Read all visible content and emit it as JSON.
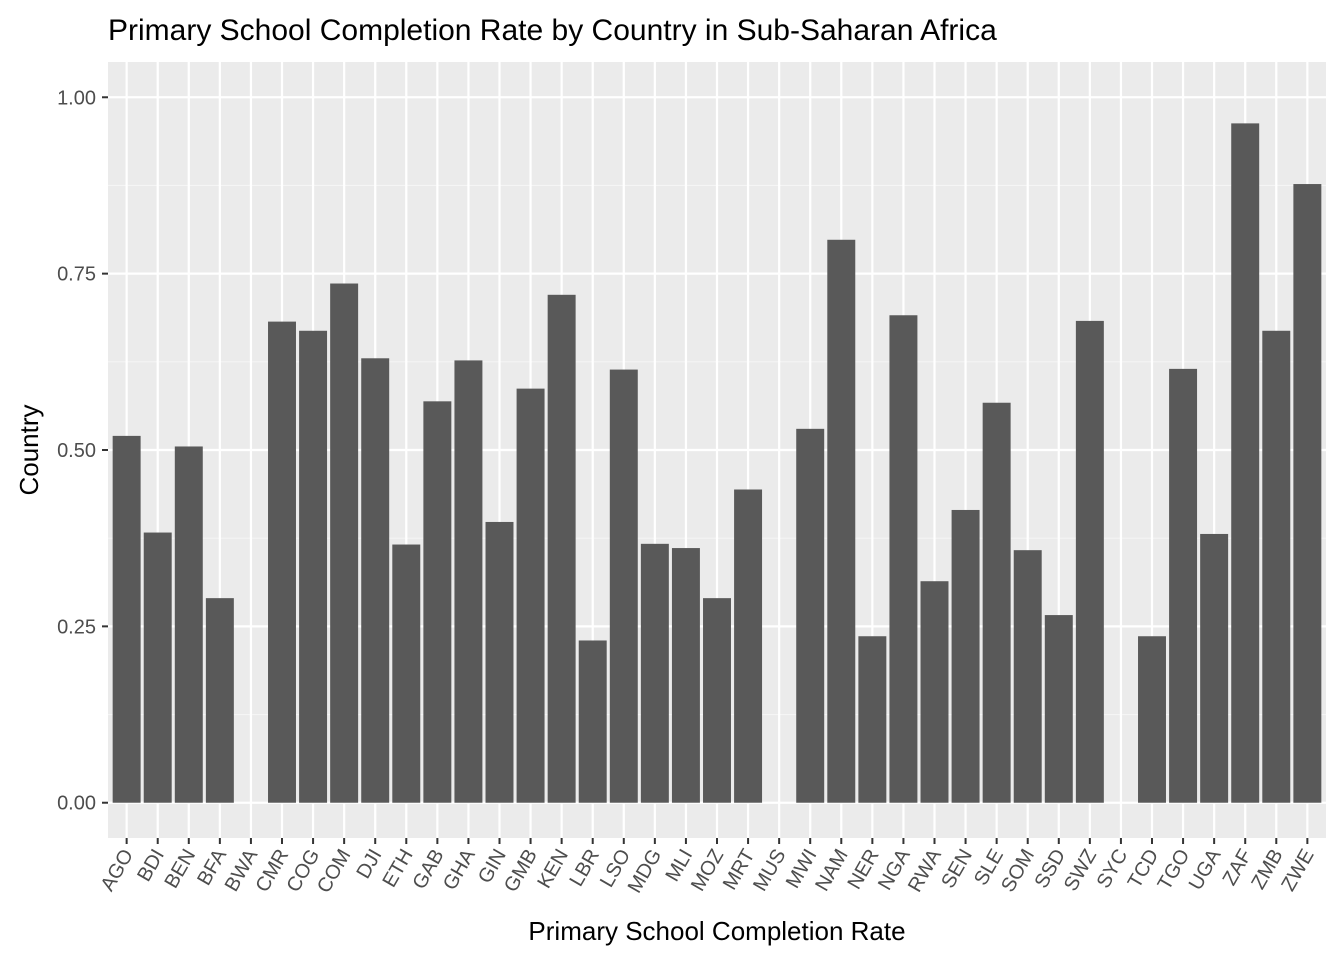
{
  "chart_data": {
    "type": "bar",
    "title": "Primary School Completion Rate by Country in Sub-Saharan Africa",
    "xlabel": "Primary School Completion Rate",
    "ylabel": "Country",
    "categories": [
      "AGO",
      "BDI",
      "BEN",
      "BFA",
      "BWA",
      "CMR",
      "COG",
      "COM",
      "DJI",
      "ETH",
      "GAB",
      "GHA",
      "GIN",
      "GMB",
      "KEN",
      "LBR",
      "LSO",
      "MDG",
      "MLI",
      "MOZ",
      "MRT",
      "MUS",
      "MWI",
      "NAM",
      "NER",
      "NGA",
      "RWA",
      "SEN",
      "SLE",
      "SOM",
      "SSD",
      "SWZ",
      "SYC",
      "TCD",
      "TGO",
      "UGA",
      "ZAF",
      "ZMB",
      "ZWE"
    ],
    "values": [
      0.52,
      0.383,
      0.505,
      0.29,
      null,
      0.682,
      0.669,
      0.736,
      0.63,
      0.366,
      0.569,
      0.627,
      0.398,
      0.587,
      0.72,
      0.23,
      0.614,
      0.367,
      0.361,
      0.29,
      0.444,
      null,
      0.53,
      0.798,
      0.236,
      0.691,
      0.314,
      0.415,
      0.567,
      0.358,
      0.266,
      0.683,
      null,
      0.236,
      0.615,
      0.381,
      0.963,
      0.669,
      0.877
    ],
    "ylim": [
      -0.05,
      1.05
    ],
    "yticks": [
      0,
      0.25,
      0.5,
      0.75,
      1
    ],
    "ytick_labels": [
      "0.00",
      "0.25",
      "0.50",
      "0.75",
      "1.00"
    ],
    "grid": true,
    "legend": "none",
    "colors": {
      "bar": "#595959",
      "panel": "#ebebeb",
      "grid_major": "#ffffff",
      "grid_minor": "#f5f5f5",
      "tick": "#333333"
    }
  }
}
